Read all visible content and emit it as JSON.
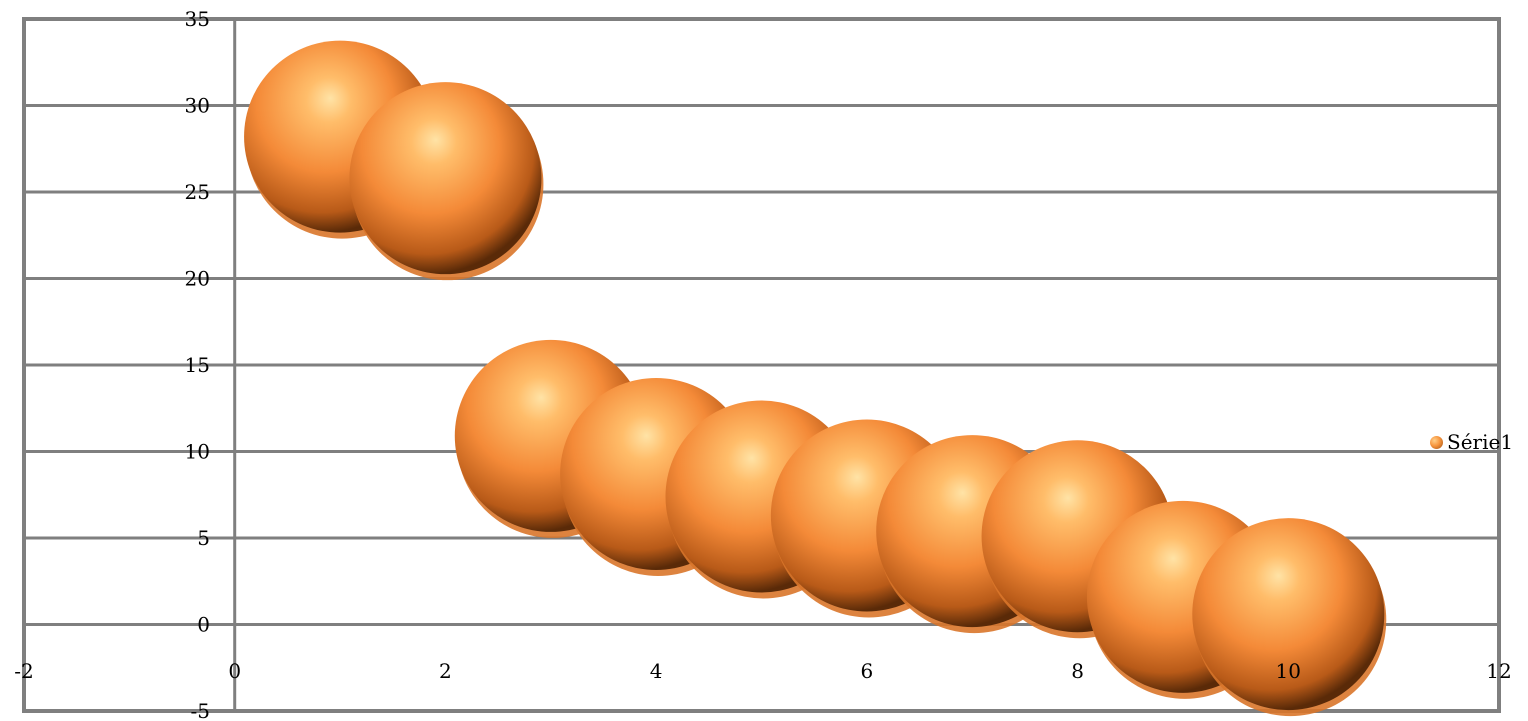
{
  "chart_data": {
    "type": "bubble",
    "title": "",
    "xlabel": "",
    "ylabel": "",
    "xlim": [
      -2,
      12
    ],
    "ylim": [
      -5,
      35
    ],
    "x_ticks": [
      -2,
      0,
      2,
      4,
      6,
      8,
      10,
      12
    ],
    "y_ticks": [
      -5,
      0,
      5,
      10,
      15,
      20,
      25,
      30,
      35
    ],
    "x_tick_labels": [
      "-2",
      "0",
      "2",
      "4",
      "6",
      "8",
      "10",
      "12"
    ],
    "y_tick_labels": [
      "-5",
      "0",
      "5",
      "10",
      "15",
      "20",
      "25",
      "30",
      "35"
    ],
    "grid": "horizontal",
    "legend_position": "right",
    "colors": {
      "bubble_light": "#ffd08a",
      "bubble_mid": "#f7953e",
      "bubble_dark": "#a04e10",
      "axis": "#7f7f7f"
    },
    "series": [
      {
        "name": "Série1",
        "points": [
          {
            "x": 1,
            "y": 28.2
          },
          {
            "x": 2,
            "y": 25.8
          },
          {
            "x": 3,
            "y": 10.9
          },
          {
            "x": 4,
            "y": 8.7
          },
          {
            "x": 5,
            "y": 7.4
          },
          {
            "x": 6,
            "y": 6.3
          },
          {
            "x": 7,
            "y": 5.4
          },
          {
            "x": 8,
            "y": 5.1
          },
          {
            "x": 9,
            "y": 1.6
          },
          {
            "x": 10,
            "y": 0.6
          }
        ]
      }
    ]
  }
}
